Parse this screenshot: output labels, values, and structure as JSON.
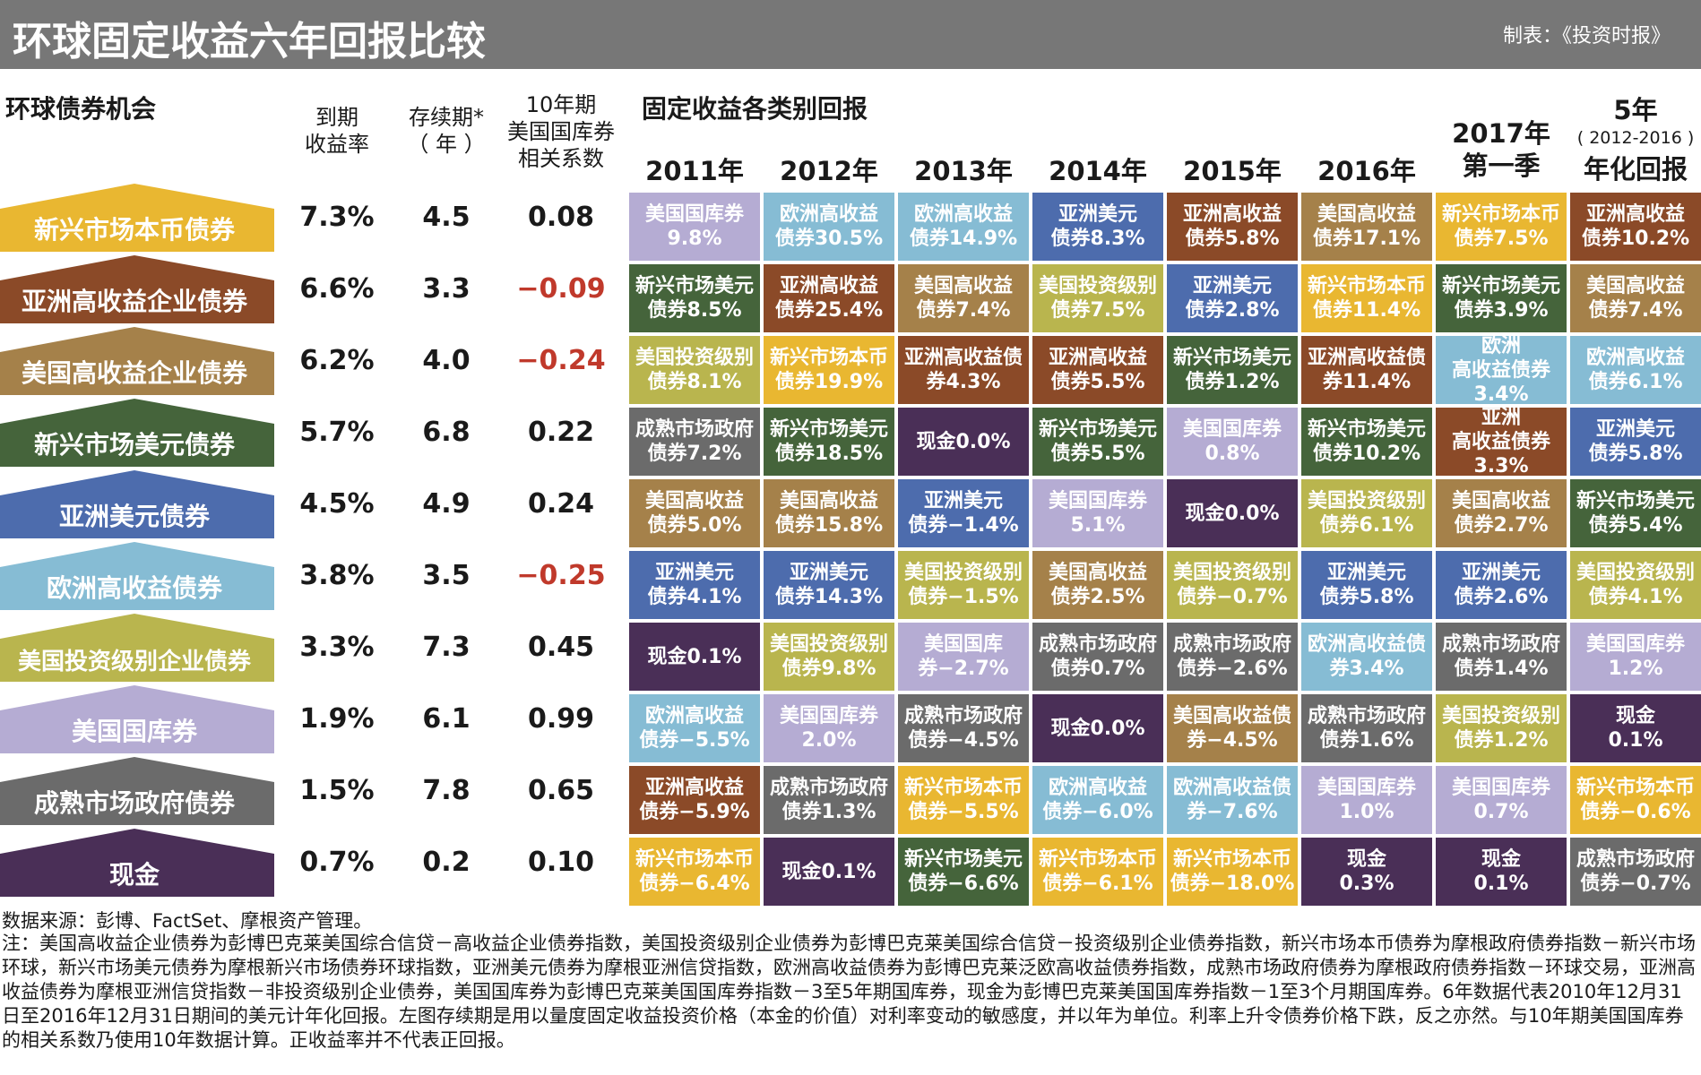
{
  "title": "环球固定收益六年回报比较",
  "credit": "制表：《投资时报》",
  "left_section_title": "环球债券机会",
  "right_section_title": "固定收益各类别回报",
  "stat_headers": {
    "yield": "到期\n收益率",
    "duration": "存续期*\n（ 年 ）",
    "corr": "10年期\n美国国库券\n相关系数"
  },
  "year_headers": [
    "2011年",
    "2012年",
    "2013年",
    "2014年",
    "2015年",
    "2016年",
    "2017年\n第一季",
    "5年"
  ],
  "annualized_sub": "( 2012-2016 )",
  "annualized_label": "年化回报",
  "colors": {
    "em_local": "#e9b731",
    "asia_hy": "#8b4a28",
    "us_hy": "#a5814a",
    "em_usd": "#45643b",
    "asia_usd": "#4d6cad",
    "euro_hy": "#86bcd4",
    "us_ig": "#b9b54e",
    "ust": "#b5acd3",
    "dm_gov": "#6b6b6b",
    "cash": "#4a2f57",
    "neg": "#c0392b"
  },
  "chart_data": {
    "type": "table",
    "title": "环球固定收益六年回报比较",
    "bond_opportunities": [
      {
        "name": "新兴市场本币债券",
        "key": "em_local",
        "yield": "7.3%",
        "duration": "4.5",
        "corr": "0.08"
      },
      {
        "name": "亚洲高收益企业债券",
        "key": "asia_hy",
        "yield": "6.6%",
        "duration": "3.3",
        "corr": "−0.09"
      },
      {
        "name": "美国高收益企业债券",
        "key": "us_hy",
        "yield": "6.2%",
        "duration": "4.0",
        "corr": "−0.24"
      },
      {
        "name": "新兴市场美元债券",
        "key": "em_usd",
        "yield": "5.7%",
        "duration": "6.8",
        "corr": "0.22"
      },
      {
        "name": "亚洲美元债券",
        "key": "asia_usd",
        "yield": "4.5%",
        "duration": "4.9",
        "corr": "0.24"
      },
      {
        "name": "欧洲高收益债券",
        "key": "euro_hy",
        "yield": "3.8%",
        "duration": "3.5",
        "corr": "−0.25"
      },
      {
        "name": "美国投资级别企业债券",
        "key": "us_ig",
        "yield": "3.3%",
        "duration": "7.3",
        "corr": "0.45"
      },
      {
        "name": "美国国库券",
        "key": "ust",
        "yield": "1.9%",
        "duration": "6.1",
        "corr": "0.99"
      },
      {
        "name": "成熟市场政府债券",
        "key": "dm_gov",
        "yield": "1.5%",
        "duration": "7.8",
        "corr": "0.65"
      },
      {
        "name": "现金",
        "key": "cash",
        "yield": "0.7%",
        "duration": "0.2",
        "corr": "0.10"
      }
    ],
    "returns_columns": [
      "2011年",
      "2012年",
      "2013年",
      "2014年",
      "2015年",
      "2016年",
      "2017年第一季",
      "5年(2012-2016)年化回报"
    ],
    "returns": [
      [
        {
          "text": "美国国库券\n9.8%",
          "key": "ust"
        },
        {
          "text": "新兴市场美元\n债券8.5%",
          "key": "em_usd"
        },
        {
          "text": "美国投资级别\n债券8.1%",
          "key": "us_ig"
        },
        {
          "text": "成熟市场政府\n债券7.2%",
          "key": "dm_gov"
        },
        {
          "text": "美国高收益\n债券5.0%",
          "key": "us_hy"
        },
        {
          "text": "亚洲美元\n债券4.1%",
          "key": "asia_usd"
        },
        {
          "text": "现金0.1%",
          "key": "cash"
        },
        {
          "text": "欧洲高收益\n债券−5.5%",
          "key": "euro_hy"
        },
        {
          "text": "亚洲高收益\n债券−5.9%",
          "key": "asia_hy"
        },
        {
          "text": "新兴市场本币\n债券−6.4%",
          "key": "em_local"
        }
      ],
      [
        {
          "text": "欧洲高收益\n债券30.5%",
          "key": "euro_hy"
        },
        {
          "text": "亚洲高收益\n债券25.4%",
          "key": "asia_hy"
        },
        {
          "text": "新兴市场本币\n债券19.9%",
          "key": "em_local"
        },
        {
          "text": "新兴市场美元\n债券18.5%",
          "key": "em_usd"
        },
        {
          "text": "美国高收益\n债券15.8%",
          "key": "us_hy"
        },
        {
          "text": "亚洲美元\n债券14.3%",
          "key": "asia_usd"
        },
        {
          "text": "美国投资级别\n债券9.8%",
          "key": "us_ig"
        },
        {
          "text": "美国国库券\n2.0%",
          "key": "ust"
        },
        {
          "text": "成熟市场政府\n债券1.3%",
          "key": "dm_gov"
        },
        {
          "text": "现金0.1%",
          "key": "cash"
        }
      ],
      [
        {
          "text": "欧洲高收益\n债券14.9%",
          "key": "euro_hy"
        },
        {
          "text": "美国高收益\n债券7.4%",
          "key": "us_hy"
        },
        {
          "text": "亚洲高收益债\n券4.3%",
          "key": "asia_hy"
        },
        {
          "text": "现金0.0%",
          "key": "cash"
        },
        {
          "text": "亚洲美元\n债券−1.4%",
          "key": "asia_usd"
        },
        {
          "text": "美国投资级别\n债券−1.5%",
          "key": "us_ig"
        },
        {
          "text": "美国国库\n券−2.7%",
          "key": "ust"
        },
        {
          "text": "成熟市场政府\n债券−4.5%",
          "key": "dm_gov"
        },
        {
          "text": "新兴市场本币\n债券−5.5%",
          "key": "em_local"
        },
        {
          "text": "新兴市场美元\n债券−6.6%",
          "key": "em_usd"
        }
      ],
      [
        {
          "text": "亚洲美元\n债券8.3%",
          "key": "asia_usd"
        },
        {
          "text": "美国投资级别\n债券7.5%",
          "key": "us_ig"
        },
        {
          "text": "亚洲高收益\n债券5.5%",
          "key": "asia_hy"
        },
        {
          "text": "新兴市场美元\n债券5.5%",
          "key": "em_usd"
        },
        {
          "text": "美国国库券\n5.1%",
          "key": "ust"
        },
        {
          "text": "美国高收益\n债券2.5%",
          "key": "us_hy"
        },
        {
          "text": "成熟市场政府\n债券0.7%",
          "key": "dm_gov"
        },
        {
          "text": "现金0.0%",
          "key": "cash"
        },
        {
          "text": "欧洲高收益\n债券−6.0%",
          "key": "euro_hy"
        },
        {
          "text": "新兴市场本币\n债券−6.1%",
          "key": "em_local"
        }
      ],
      [
        {
          "text": "亚洲高收益\n债券5.8%",
          "key": "asia_hy"
        },
        {
          "text": "亚洲美元\n债券2.8%",
          "key": "asia_usd"
        },
        {
          "text": "新兴市场美元\n债券1.2%",
          "key": "em_usd"
        },
        {
          "text": "美国国库券\n0.8%",
          "key": "ust"
        },
        {
          "text": "现金0.0%",
          "key": "cash"
        },
        {
          "text": "美国投资级别\n债券−0.7%",
          "key": "us_ig"
        },
        {
          "text": "成熟市场政府\n债券−2.6%",
          "key": "dm_gov"
        },
        {
          "text": "美国高收益债\n券−4.5%",
          "key": "us_hy"
        },
        {
          "text": "欧洲高收益债\n券−7.6%",
          "key": "euro_hy"
        },
        {
          "text": "新兴市场本币\n债券−18.0%",
          "key": "em_local"
        }
      ],
      [
        {
          "text": "美国高收益\n债券17.1%",
          "key": "us_hy"
        },
        {
          "text": "新兴市场本币\n债券11.4%",
          "key": "em_local"
        },
        {
          "text": "亚洲高收益债\n券11.4%",
          "key": "asia_hy"
        },
        {
          "text": "新兴市场美元\n债券10.2%",
          "key": "em_usd"
        },
        {
          "text": "美国投资级别\n债券6.1%",
          "key": "us_ig"
        },
        {
          "text": "亚洲美元\n债券5.8%",
          "key": "asia_usd"
        },
        {
          "text": "欧洲高收益债\n券3.4%",
          "key": "euro_hy"
        },
        {
          "text": "成熟市场政府\n债券1.6%",
          "key": "dm_gov"
        },
        {
          "text": "美国国库券\n1.0%",
          "key": "ust"
        },
        {
          "text": "现金\n0.3%",
          "key": "cash"
        }
      ],
      [
        {
          "text": "新兴市场本币\n债券7.5%",
          "key": "em_local"
        },
        {
          "text": "新兴市场美元\n债券3.9%",
          "key": "em_usd"
        },
        {
          "text": "欧洲\n高收益债券\n3.4%",
          "key": "euro_hy"
        },
        {
          "text": "亚洲\n高收益债券\n3.3%",
          "key": "asia_hy"
        },
        {
          "text": "美国高收益\n债券2.7%",
          "key": "us_hy"
        },
        {
          "text": "亚洲美元\n债券2.6%",
          "key": "asia_usd"
        },
        {
          "text": "成熟市场政府\n债券1.4%",
          "key": "dm_gov"
        },
        {
          "text": "美国投资级别\n债券1.2%",
          "key": "us_ig"
        },
        {
          "text": "美国国库券\n0.7%",
          "key": "ust"
        },
        {
          "text": "现金\n0.1%",
          "key": "cash"
        }
      ],
      [
        {
          "text": "亚洲高收益\n债券10.2%",
          "key": "asia_hy"
        },
        {
          "text": "美国高收益\n债券7.4%",
          "key": "us_hy"
        },
        {
          "text": "欧洲高收益\n债券6.1%",
          "key": "euro_hy"
        },
        {
          "text": "亚洲美元\n债券5.8%",
          "key": "asia_usd"
        },
        {
          "text": "新兴市场美元\n债券5.4%",
          "key": "em_usd"
        },
        {
          "text": "美国投资级别\n债券4.1%",
          "key": "us_ig"
        },
        {
          "text": "美国国库券\n1.2%",
          "key": "ust"
        },
        {
          "text": "现金\n0.1%",
          "key": "cash"
        },
        {
          "text": "新兴市场本币\n债券−0.6%",
          "key": "em_local"
        },
        {
          "text": "成熟市场政府\n债券−0.7%",
          "key": "dm_gov"
        }
      ]
    ]
  },
  "source": "数据来源：彭博、FactSet、摩根资产管理。",
  "notes": "注：美国高收益企业债券为彭博巴克莱美国综合信贷－高收益企业债券指数，美国投资级别企业债券为彭博巴克莱美国综合信贷－投资级别企业债券指数，新兴市场本币债券为摩根政府债券指数－新兴市场环球，新兴市场美元债券为摩根新兴市场债券环球指数，亚洲美元债券为摩根亚洲信贷指数，欧洲高收益债券为彭博巴克莱泛欧高收益债券指数，成熟市场政府债券为摩根政府债券指数－环球交易，亚洲高收益债券为摩根亚洲信贷指数－非投资级别企业债券，美国国库券为彭博巴克莱美国国库券指数－3至5年期国库券，现金为彭博巴克莱美国国库券指数－1至3个月期国库券。6年数据代表2010年12月31日至2016年12月31日期间的美元计年化回报。左图存续期是用以量度固定收益投资价格（本金的价值）对利率变动的敏感度，并以年为单位。利率上升令债券价格下跌，反之亦然。与10年期美国国库券的相关系数乃使用10年数据计算。正收益率并不代表正回报。"
}
